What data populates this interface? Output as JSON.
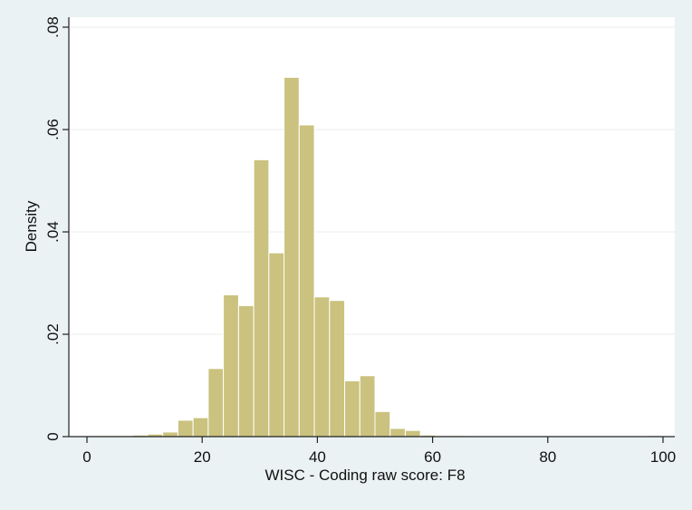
{
  "chart_data": {
    "type": "bar",
    "subtype": "histogram",
    "xlabel": "WISC - Coding raw score: F8",
    "ylabel": "Density",
    "xlim": [
      0,
      100
    ],
    "ylim": [
      0,
      0.08
    ],
    "x_ticks": [
      {
        "value": 0,
        "label": "0"
      },
      {
        "value": 20,
        "label": "20"
      },
      {
        "value": 40,
        "label": "40"
      },
      {
        "value": 60,
        "label": "60"
      },
      {
        "value": 80,
        "label": "80"
      },
      {
        "value": 100,
        "label": "100"
      }
    ],
    "y_ticks": [
      {
        "value": 0,
        "label": "0"
      },
      {
        "value": 0.02,
        "label": ".02"
      },
      {
        "value": 0.04,
        "label": ".04"
      },
      {
        "value": 0.06,
        "label": ".06"
      },
      {
        "value": 0.08,
        "label": ".08"
      }
    ],
    "grid": true,
    "legend": "none",
    "colors": {
      "bar_fill": "#cac27e",
      "bar_stroke": "#ffffff",
      "plot_bg": "#ffffff",
      "outer_bg": "#eaf2f3",
      "grid": "#e8eeee",
      "axis": "#222222"
    },
    "bins": [
      {
        "start": 0,
        "end": 2.63,
        "value": 0.0002
      },
      {
        "start": 2.63,
        "end": 5.26,
        "value": 0.0002
      },
      {
        "start": 5.26,
        "end": 7.89,
        "value": 0.0002
      },
      {
        "start": 7.89,
        "end": 10.53,
        "value": 0.0003
      },
      {
        "start": 10.53,
        "end": 13.16,
        "value": 0.0005
      },
      {
        "start": 13.16,
        "end": 15.79,
        "value": 0.0009
      },
      {
        "start": 15.79,
        "end": 18.42,
        "value": 0.0032
      },
      {
        "start": 18.42,
        "end": 21.05,
        "value": 0.0037
      },
      {
        "start": 21.05,
        "end": 23.68,
        "value": 0.0133
      },
      {
        "start": 23.68,
        "end": 26.32,
        "value": 0.0277
      },
      {
        "start": 26.32,
        "end": 28.95,
        "value": 0.0256
      },
      {
        "start": 28.95,
        "end": 31.58,
        "value": 0.0541
      },
      {
        "start": 31.58,
        "end": 34.21,
        "value": 0.0359
      },
      {
        "start": 34.21,
        "end": 36.84,
        "value": 0.0702
      },
      {
        "start": 36.84,
        "end": 39.47,
        "value": 0.0609
      },
      {
        "start": 39.47,
        "end": 42.11,
        "value": 0.0273
      },
      {
        "start": 42.11,
        "end": 44.74,
        "value": 0.0266
      },
      {
        "start": 44.74,
        "end": 47.37,
        "value": 0.0109
      },
      {
        "start": 47.37,
        "end": 50.0,
        "value": 0.0119
      },
      {
        "start": 50.0,
        "end": 52.63,
        "value": 0.0049
      },
      {
        "start": 52.63,
        "end": 55.26,
        "value": 0.0016
      },
      {
        "start": 55.26,
        "end": 57.89,
        "value": 0.0012
      },
      {
        "start": 57.89,
        "end": 60.53,
        "value": 0.0003
      },
      {
        "start": 60.53,
        "end": 63.16,
        "value": 0.0002
      },
      {
        "start": 63.16,
        "end": 65.79,
        "value": 0.0002
      },
      {
        "start": 97.37,
        "end": 100.0,
        "value": 0.0002
      }
    ]
  }
}
